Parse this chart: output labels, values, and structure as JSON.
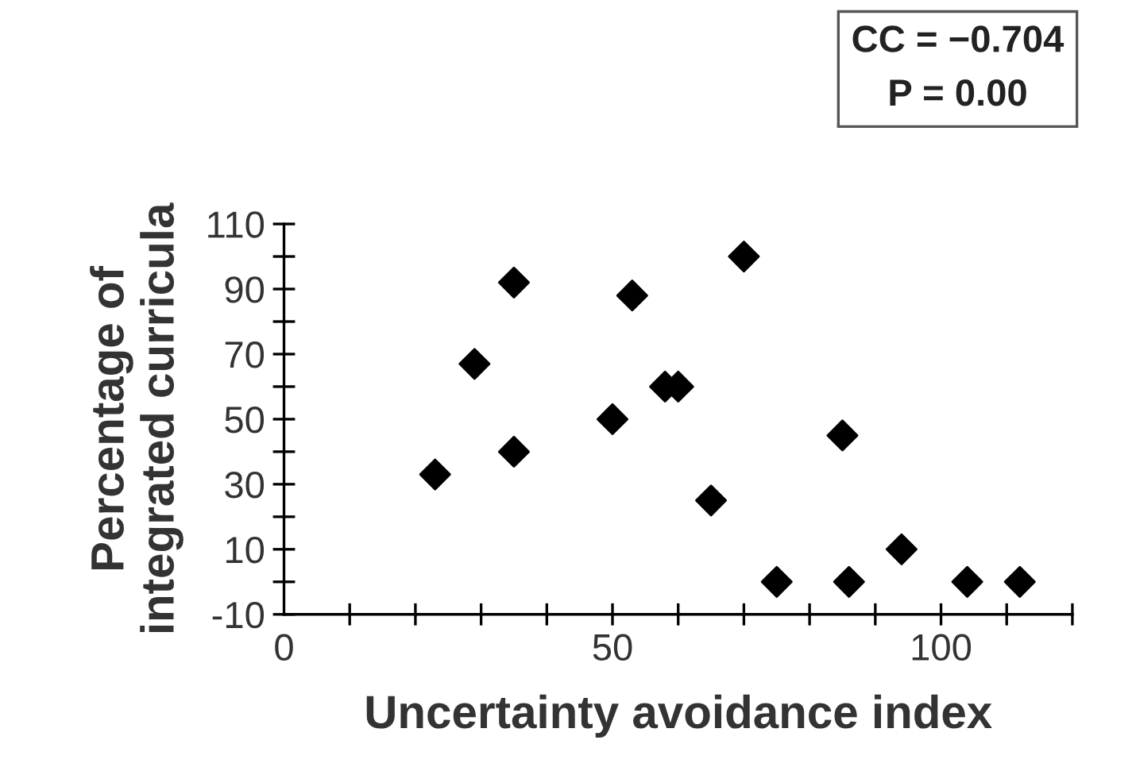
{
  "chart_data": {
    "type": "scatter",
    "xlabel": "Uncertainty avoidance index",
    "ylabel": "Percentage of\nintegrated curricula",
    "annotations": [
      "CC = −0.704",
      "P = 0.00"
    ],
    "x": [
      23,
      29,
      35,
      35,
      50,
      53,
      58,
      60,
      65,
      70,
      75,
      85,
      86,
      94,
      104,
      112
    ],
    "series": [
      {
        "color": "#000000",
        "values": [
          33,
          67,
          40,
          92,
          50,
          88,
          60,
          60,
          25,
          100,
          0,
          45,
          0,
          10,
          0,
          0
        ]
      }
    ],
    "marker": "diamond",
    "grid": false,
    "legend": false,
    "xlim": [
      0,
      120
    ],
    "xticks": [
      0,
      {
        "value": 10,
        "label": null
      },
      {
        "value": 20,
        "label": null
      },
      {
        "value": 30,
        "label": null
      },
      {
        "value": 40,
        "label": null
      },
      50,
      {
        "value": 60,
        "label": null
      },
      {
        "value": 70,
        "label": null
      },
      {
        "value": 80,
        "label": null
      },
      {
        "value": 90,
        "label": null
      },
      100,
      {
        "value": 110,
        "label": null
      },
      {
        "value": 120,
        "label": null
      }
    ],
    "ylim": [
      -10,
      110
    ],
    "yticks": [
      -10,
      {
        "value": 0,
        "label": null
      },
      10,
      {
        "value": 20,
        "label": null
      },
      30,
      {
        "value": 40,
        "label": null
      },
      50,
      {
        "value": 60,
        "label": null
      },
      70,
      {
        "value": 80,
        "label": null
      },
      90,
      {
        "value": 100,
        "label": null
      },
      110
    ]
  }
}
